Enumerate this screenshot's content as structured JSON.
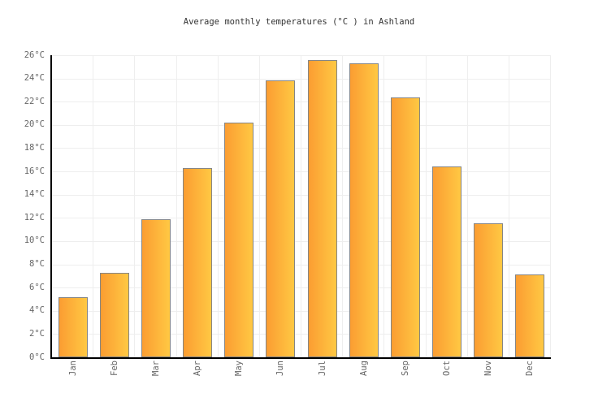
{
  "chart_data": {
    "type": "bar",
    "title": "Average monthly temperatures (°C ) in Ashland",
    "categories": [
      "Jan",
      "Feb",
      "Mar",
      "Apr",
      "May",
      "Jun",
      "Jul",
      "Aug",
      "Sep",
      "Oct",
      "Nov",
      "Dec"
    ],
    "values": [
      5.2,
      7.3,
      11.9,
      16.3,
      20.2,
      23.8,
      25.6,
      25.3,
      22.4,
      16.4,
      11.5,
      7.1
    ],
    "xlabel": "",
    "ylabel": "",
    "ylim": [
      0,
      26
    ],
    "ytick_step": 2,
    "ytick_suffix": "°C",
    "ytick_labels": [
      "0°C",
      "2°C",
      "4°C",
      "6°C",
      "8°C",
      "10°C",
      "12°C",
      "14°C",
      "16°C",
      "18°C",
      "20°C",
      "22°C",
      "24°C",
      "26°C"
    ],
    "grid": "on",
    "legend": "none",
    "colors": {
      "bar_gradient_left": "#FB9D32",
      "bar_gradient_right": "#FFC843",
      "bar_border": "#858585",
      "gridline": "#EEEEEE",
      "axis": "#000000",
      "title_text": "#333333",
      "tick_text": "#666666",
      "background": "#FFFFFF"
    }
  }
}
